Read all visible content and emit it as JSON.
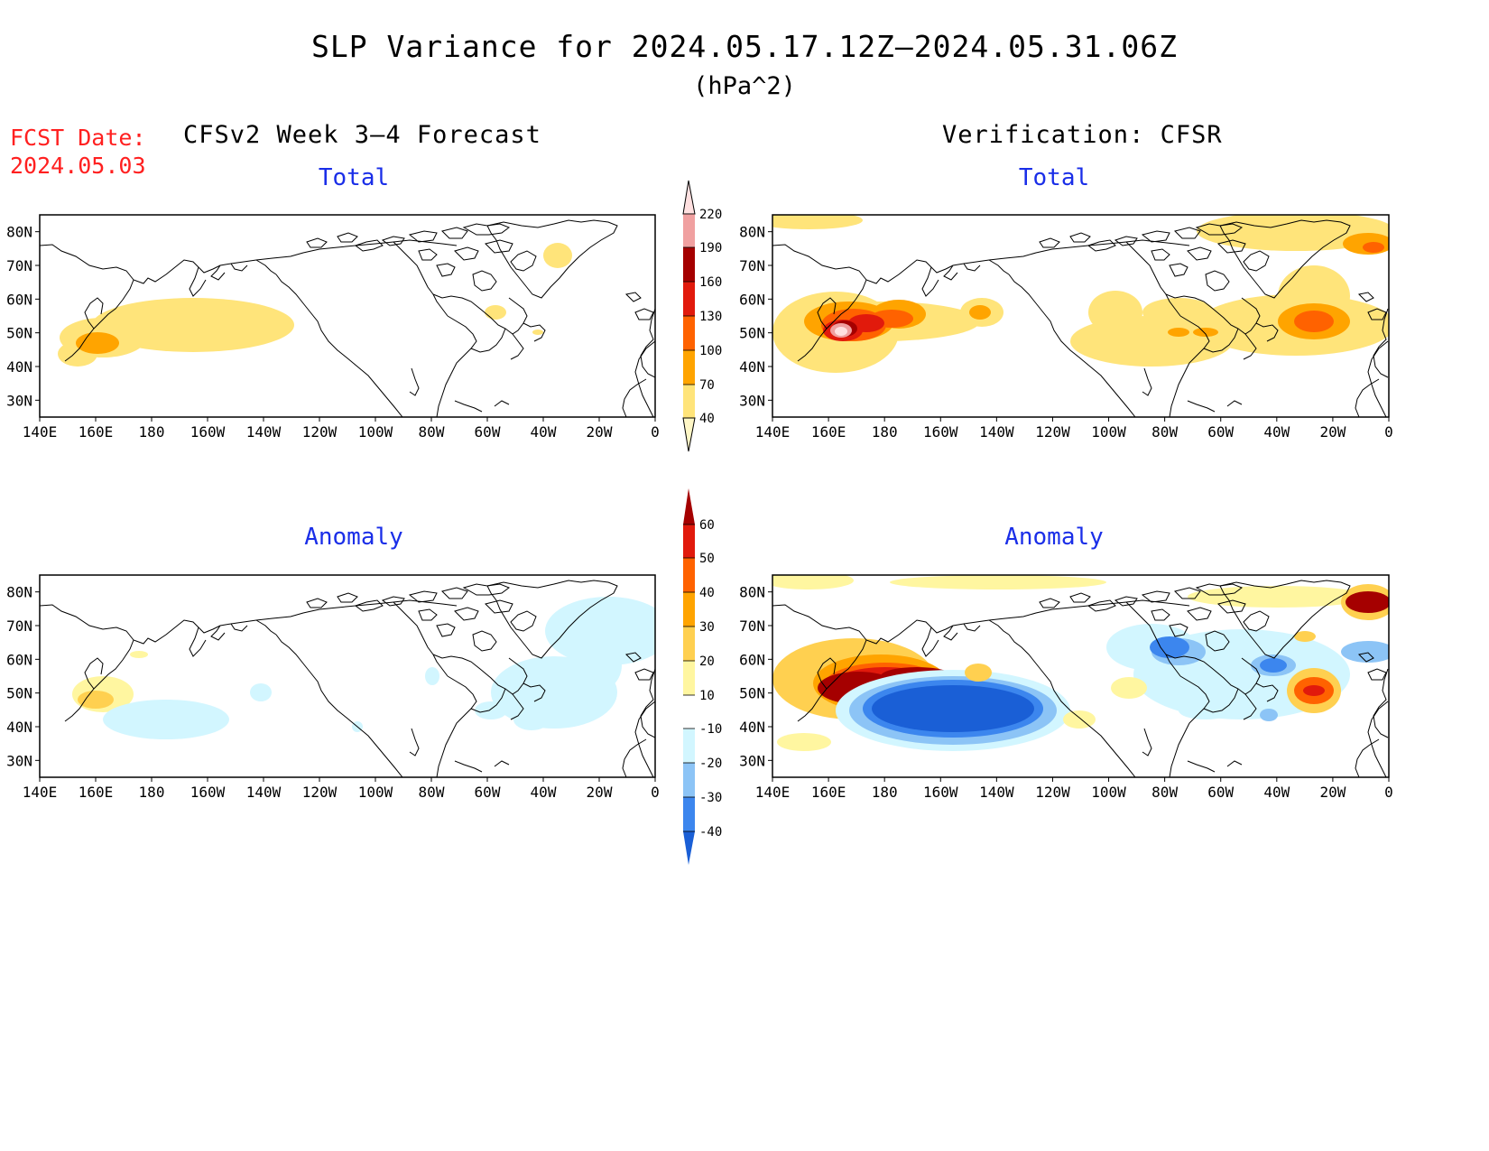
{
  "header": {
    "title": "SLP Variance for 2024.05.17.12Z–2024.05.31.06Z",
    "units": "(hPa^2)",
    "fcst_date_label": "FCST Date:",
    "fcst_date_value": "2024.05.03",
    "left_column_title": "CFSv2 Week 3–4 Forecast",
    "right_column_title": "Verification: CFSR"
  },
  "panels": {
    "fc_total": {
      "title": "Total"
    },
    "ver_total": {
      "title": "Total"
    },
    "fc_anom": {
      "title": "Anomaly"
    },
    "ver_anom": {
      "title": "Anomaly"
    }
  },
  "map_axes": {
    "lon_labels": [
      "140E",
      "160E",
      "180",
      "160W",
      "140W",
      "120W",
      "100W",
      "80W",
      "60W",
      "40W",
      "20W",
      "0"
    ],
    "lat_labels": [
      "80N",
      "70N",
      "60N",
      "50N",
      "40N",
      "30N"
    ]
  },
  "colorbars": {
    "total": {
      "levels": [
        "40",
        "70",
        "100",
        "130",
        "160",
        "190",
        "220"
      ],
      "colors": [
        "#fff7c6",
        "#ffe47a",
        "#ffa400",
        "#ff6200",
        "#e11a0c",
        "#a50000",
        "#f0a0a0",
        "#ffe0e0"
      ]
    },
    "anomaly": {
      "levels": [
        "-40",
        "-30",
        "-20",
        "-10",
        "10",
        "20",
        "30",
        "40",
        "50",
        "60"
      ],
      "colors": [
        "#1a5fd6",
        "#3c86ee",
        "#8cc4f6",
        "#d2f6ff",
        "#ffffff",
        "#fff6a0",
        "#ffd050",
        "#ffa400",
        "#ff6200",
        "#e11a0c",
        "#a50000"
      ]
    }
  },
  "colors": {
    "title_text": "#000000",
    "fcst_date_text": "#ff2020",
    "panel_title_text": "#1a2ee8"
  }
}
